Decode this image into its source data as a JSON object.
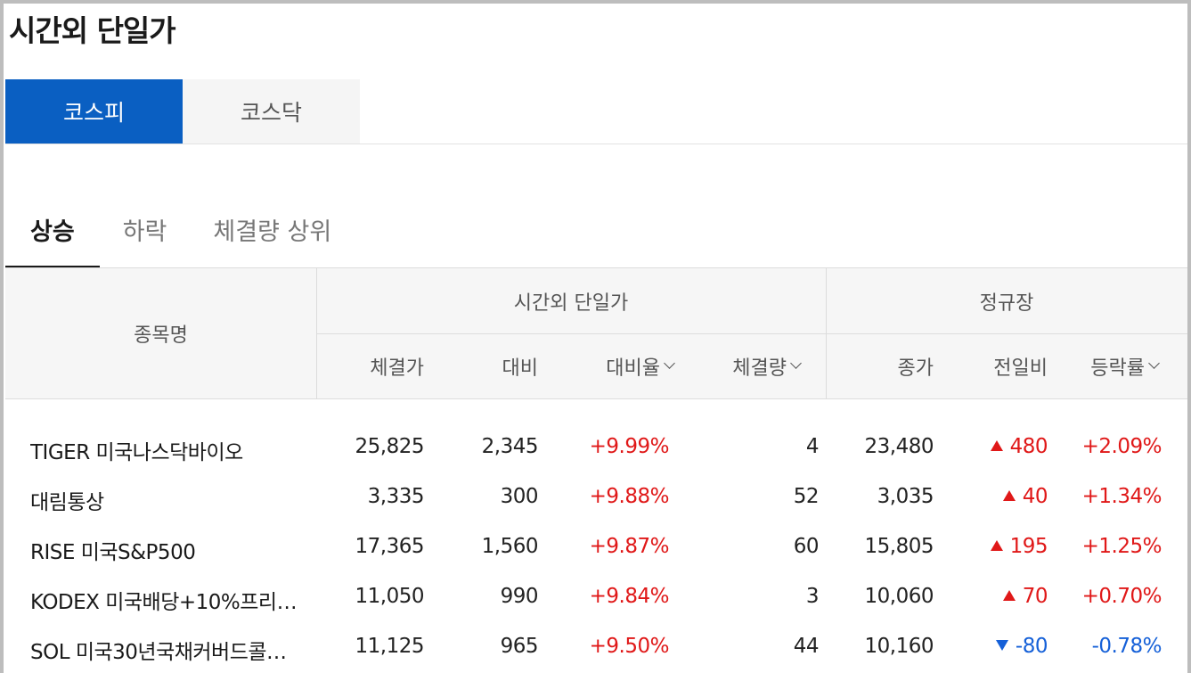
{
  "title": "시간외 단일가",
  "market_tabs": [
    {
      "label": "코스피",
      "active": true
    },
    {
      "label": "코스닥",
      "active": false
    }
  ],
  "sub_tabs": [
    {
      "label": "상승",
      "active": true
    },
    {
      "label": "하락",
      "active": false
    },
    {
      "label": "체결량 상위",
      "active": false
    }
  ],
  "table": {
    "name_header": "종목명",
    "group_after": "시간외 단일가",
    "group_regular": "정규장",
    "columns": {
      "price": "체결가",
      "change": "대비",
      "change_rate": "대비율",
      "volume": "체결량",
      "close": "종가",
      "prev_change": "전일비",
      "rate": "등락률"
    },
    "rows": [
      {
        "name": "TIGER 미국나스닥바이오",
        "price": "25,825",
        "change": "2,345",
        "change_rate": "+9.99%",
        "volume": "4",
        "close": "23,480",
        "prev_change": "480",
        "direction": "up",
        "rate": "+2.09%"
      },
      {
        "name": "대림통상",
        "price": "3,335",
        "change": "300",
        "change_rate": "+9.88%",
        "volume": "52",
        "close": "3,035",
        "prev_change": "40",
        "direction": "up",
        "rate": "+1.34%"
      },
      {
        "name": "RISE 미국S&P500",
        "price": "17,365",
        "change": "1,560",
        "change_rate": "+9.87%",
        "volume": "60",
        "close": "15,805",
        "prev_change": "195",
        "direction": "up",
        "rate": "+1.25%"
      },
      {
        "name": "KODEX 미국배당+10%프리…",
        "price": "11,050",
        "change": "990",
        "change_rate": "+9.84%",
        "volume": "3",
        "close": "10,060",
        "prev_change": "70",
        "direction": "up",
        "rate": "+0.70%"
      },
      {
        "name": "SOL 미국30년국채커버드콜…",
        "price": "11,125",
        "change": "965",
        "change_rate": "+9.50%",
        "volume": "44",
        "close": "10,160",
        "prev_change": "-80",
        "direction": "down",
        "rate": "-0.78%"
      }
    ]
  },
  "colors": {
    "accent": "#0a5fc2",
    "up": "#e01818",
    "down": "#1560d8"
  }
}
